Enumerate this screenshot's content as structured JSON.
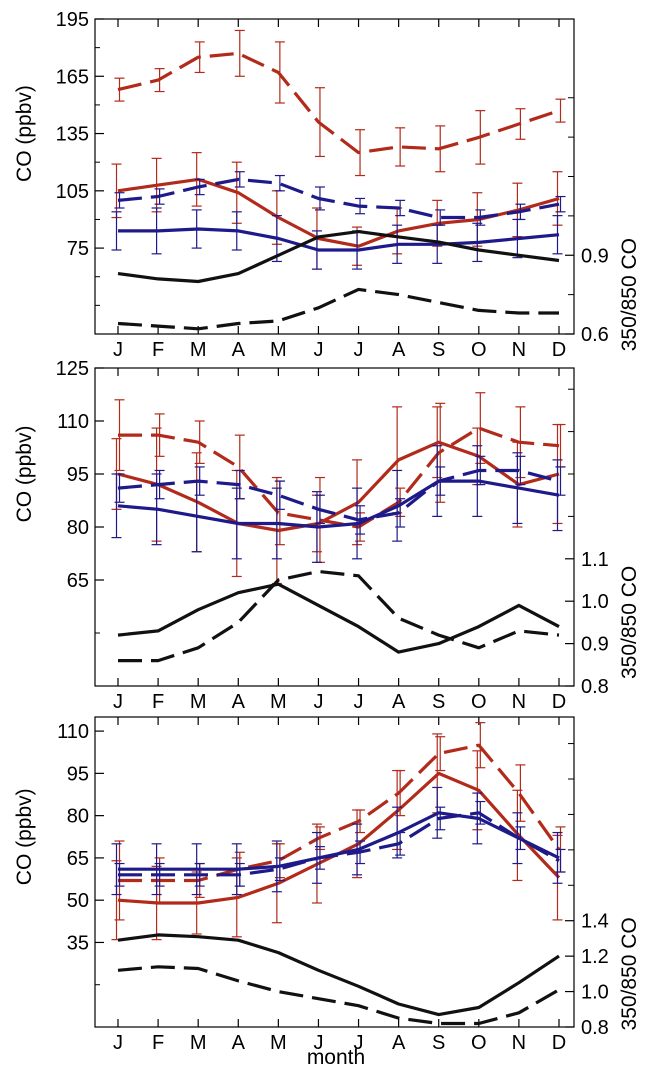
{
  "x_axis_title": "month",
  "chart_data": [
    {
      "type": "line",
      "months": [
        "J",
        "F",
        "M",
        "A",
        "M",
        "J",
        "J",
        "A",
        "S",
        "O",
        "N",
        "D"
      ],
      "left_axis": {
        "label": "CO (ppbv)",
        "ticks": [
          75,
          105,
          135,
          165,
          195
        ],
        "minor_ticks": [
          45,
          60,
          90,
          120,
          150,
          180
        ],
        "range": [
          30,
          195
        ]
      },
      "right_axis": {
        "label": "350/850 CO",
        "ticks": [
          0.6,
          0.9
        ],
        "tick_labels": [
          "0.6",
          "0.9"
        ],
        "minor_ticks": [
          0.75,
          1.05,
          1.2,
          1.35,
          1.5
        ],
        "range": [
          0.6,
          1.8
        ]
      },
      "series": [
        {
          "color": "#b22a1a",
          "dash": "long",
          "axis": "left",
          "values": [
            158,
            163,
            175,
            177,
            167,
            141,
            125,
            128,
            127,
            133,
            140,
            147
          ],
          "error": [
            6,
            6,
            8,
            12,
            16,
            18,
            12,
            10,
            12,
            14,
            8,
            6
          ]
        },
        {
          "color": "#b22a1a",
          "dash": "solid",
          "axis": "left",
          "values": [
            105,
            108,
            111,
            104,
            91,
            80,
            76,
            84,
            88,
            90,
            95,
            101
          ],
          "error": [
            14,
            14,
            14,
            16,
            14,
            16,
            10,
            12,
            12,
            14,
            14,
            14
          ]
        },
        {
          "color": "#1e1a8a",
          "dash": "long",
          "axis": "left",
          "values": [
            100,
            102,
            107,
            111,
            109,
            101,
            97,
            96,
            91,
            91,
            94,
            98
          ],
          "error": [
            4,
            4,
            4,
            4,
            4,
            6,
            4,
            4,
            4,
            4,
            4,
            4
          ]
        },
        {
          "color": "#1e1a8a",
          "dash": "solid",
          "axis": "left",
          "values": [
            84,
            84,
            85,
            84,
            80,
            74,
            74,
            77,
            77,
            78,
            80,
            82
          ],
          "error": [
            10,
            12,
            10,
            10,
            12,
            10,
            10,
            10,
            10,
            10,
            10,
            10
          ]
        },
        {
          "color": "#111111",
          "dash": "solid",
          "axis": "right",
          "values": [
            0.83,
            0.81,
            0.8,
            0.83,
            0.9,
            0.97,
            0.99,
            0.97,
            0.95,
            0.92,
            0.9,
            0.88
          ]
        },
        {
          "color": "#111111",
          "dash": "long",
          "axis": "right",
          "values": [
            0.64,
            0.63,
            0.62,
            0.64,
            0.65,
            0.7,
            0.77,
            0.75,
            0.72,
            0.69,
            0.68,
            0.68
          ]
        }
      ]
    },
    {
      "type": "line",
      "months": [
        "J",
        "F",
        "M",
        "A",
        "M",
        "J",
        "J",
        "A",
        "S",
        "O",
        "N",
        "D"
      ],
      "left_axis": {
        "label": "CO (ppbv)",
        "ticks": [
          65,
          80,
          95,
          110,
          125
        ],
        "minor_ticks": [
          35,
          50
        ],
        "range": [
          35,
          125
        ]
      },
      "right_axis": {
        "label": "350/850 CO",
        "ticks": [
          0.8,
          0.9,
          1.0,
          1.1
        ],
        "tick_labels": [
          "0.8",
          "0.9",
          "1.0",
          "1.1"
        ],
        "minor_ticks": [
          1.2,
          1.3,
          1.4,
          1.5
        ],
        "range": [
          0.8,
          1.55
        ]
      },
      "series": [
        {
          "color": "#b22a1a",
          "dash": "long",
          "axis": "left",
          "values": [
            106,
            106,
            104,
            97,
            84,
            82,
            80,
            87,
            101,
            108,
            104,
            103
          ],
          "error": [
            10,
            6,
            6,
            9,
            9,
            12,
            4,
            4,
            14,
            10,
            10,
            6
          ]
        },
        {
          "color": "#b22a1a",
          "dash": "solid",
          "axis": "left",
          "values": [
            95,
            92,
            87,
            81,
            79,
            81,
            87,
            99,
            104,
            100,
            92,
            95
          ],
          "error": [
            10,
            16,
            14,
            15,
            15,
            8,
            12,
            15,
            10,
            8,
            12,
            14
          ]
        },
        {
          "color": "#1e1a8a",
          "dash": "long",
          "axis": "left",
          "values": [
            91,
            92,
            93,
            92,
            89,
            85,
            82,
            84,
            93,
            96,
            96,
            93
          ],
          "error": [
            4,
            4,
            4,
            4,
            4,
            4,
            4,
            4,
            4,
            4,
            4,
            4
          ]
        },
        {
          "color": "#1e1a8a",
          "dash": "solid",
          "axis": "left",
          "values": [
            86,
            85,
            83,
            81,
            81,
            80,
            81,
            86,
            93,
            93,
            91,
            89
          ],
          "error": [
            9,
            10,
            10,
            10,
            10,
            10,
            10,
            10,
            10,
            10,
            10,
            10
          ]
        },
        {
          "color": "#111111",
          "dash": "solid",
          "axis": "right",
          "values": [
            0.92,
            0.93,
            0.98,
            1.02,
            1.04,
            0.99,
            0.94,
            0.88,
            0.9,
            0.94,
            0.99,
            0.94
          ]
        },
        {
          "color": "#111111",
          "dash": "long",
          "axis": "right",
          "values": [
            0.86,
            0.86,
            0.89,
            0.95,
            1.05,
            1.07,
            1.06,
            0.96,
            0.92,
            0.89,
            0.93,
            0.92
          ]
        }
      ]
    },
    {
      "type": "line",
      "months": [
        "J",
        "F",
        "M",
        "A",
        "M",
        "J",
        "J",
        "A",
        "S",
        "O",
        "N",
        "D"
      ],
      "left_axis": {
        "label": "CO (ppbv)",
        "ticks": [
          35,
          50,
          65,
          80,
          95,
          110
        ],
        "minor_ticks": [
          5,
          20
        ],
        "range": [
          5,
          115
        ]
      },
      "right_axis": {
        "label": "350/850 CO",
        "ticks": [
          0.8,
          1.0,
          1.2,
          1.4
        ],
        "tick_labels": [
          "0.8",
          "1.0",
          "1.2",
          "1.4"
        ],
        "minor_ticks": [
          1.6,
          1.8,
          2.0,
          2.2,
          2.4
        ],
        "range": [
          0.8,
          2.55
        ]
      },
      "series": [
        {
          "color": "#b22a1a",
          "dash": "long",
          "axis": "left",
          "values": [
            57,
            57,
            57,
            61,
            64,
            72,
            78,
            88,
            102,
            105,
            88,
            68
          ],
          "error": [
            14,
            8,
            6,
            6,
            6,
            4,
            4,
            8,
            6,
            8,
            10,
            8
          ]
        },
        {
          "color": "#b22a1a",
          "dash": "solid",
          "axis": "left",
          "values": [
            50,
            49,
            49,
            51,
            56,
            63,
            70,
            82,
            95,
            89,
            73,
            58
          ],
          "error": [
            14,
            13,
            11,
            14,
            14,
            14,
            12,
            14,
            14,
            14,
            16,
            15
          ]
        },
        {
          "color": "#1e1a8a",
          "dash": "long",
          "axis": "left",
          "values": [
            59,
            59,
            59,
            59,
            61,
            65,
            67,
            70,
            79,
            81,
            72,
            64
          ],
          "error": [
            4,
            4,
            4,
            4,
            4,
            4,
            4,
            4,
            4,
            4,
            4,
            4
          ]
        },
        {
          "color": "#1e1a8a",
          "dash": "solid",
          "axis": "left",
          "values": [
            61,
            61,
            61,
            61,
            62,
            65,
            68,
            74,
            81,
            79,
            72,
            65
          ],
          "error": [
            9,
            9,
            9,
            9,
            9,
            9,
            9,
            9,
            9,
            9,
            9,
            9
          ]
        },
        {
          "color": "#111111",
          "dash": "solid",
          "axis": "right",
          "values": [
            1.29,
            1.32,
            1.31,
            1.29,
            1.22,
            1.12,
            1.03,
            0.93,
            0.87,
            0.91,
            1.05,
            1.2
          ]
        },
        {
          "color": "#111111",
          "dash": "long",
          "axis": "right",
          "values": [
            1.12,
            1.14,
            1.13,
            1.06,
            1.0,
            0.96,
            0.92,
            0.85,
            0.82,
            0.82,
            0.88,
            1.01
          ]
        }
      ]
    }
  ]
}
